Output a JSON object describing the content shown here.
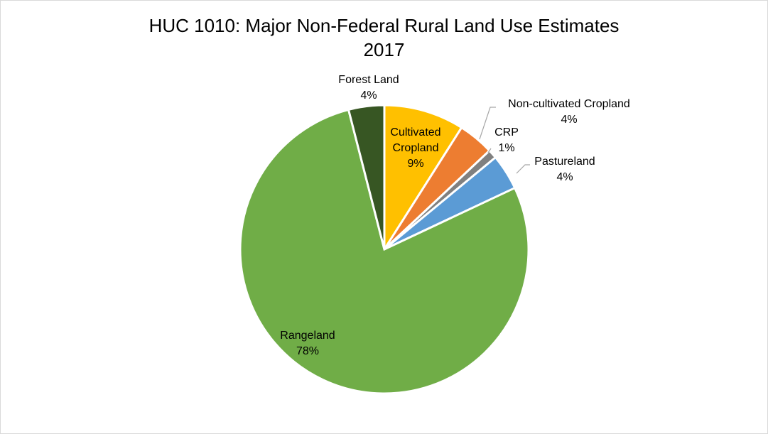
{
  "chart_data": {
    "type": "pie",
    "title": "HUC 1010: Major Non-Federal Rural Land Use Estimates",
    "subtitle": "2017",
    "slices": [
      {
        "label": "Cultivated Cropland",
        "value": 9,
        "display": "9%",
        "color": "#FFC000"
      },
      {
        "label": "Non-cultivated Cropland",
        "value": 4,
        "display": "4%",
        "color": "#ED7D31"
      },
      {
        "label": "CRP",
        "value": 1,
        "display": "1%",
        "color": "#808080"
      },
      {
        "label": "Pastureland",
        "value": 4,
        "display": "4%",
        "color": "#5B9BD5"
      },
      {
        "label": "Rangeland",
        "value": 78,
        "display": "78%",
        "color": "#70AD47"
      },
      {
        "label": "Forest Land",
        "value": 4,
        "display": "4%",
        "color": "#375623"
      }
    ],
    "legend": "none"
  }
}
